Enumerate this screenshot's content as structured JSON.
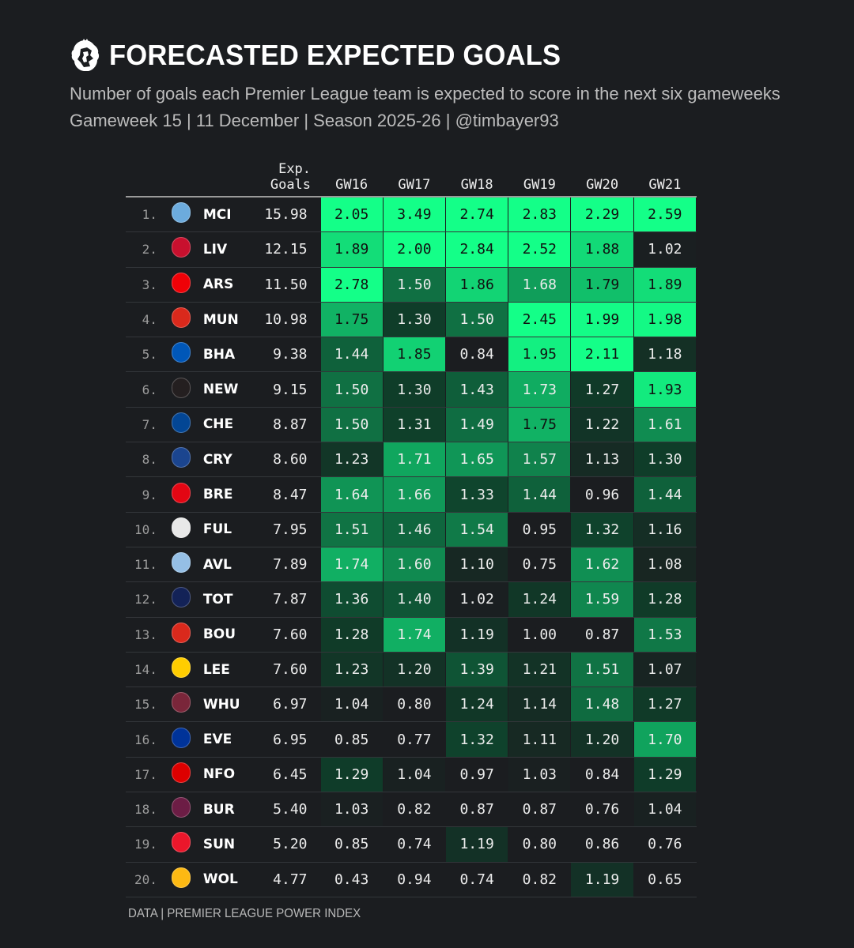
{
  "header": {
    "title": "FORECASTED EXPECTED GOALS",
    "subtitle": "Number of goals each Premier League team is expected to score in the next six gameweeks",
    "meta": "Gameweek 15 | 11 December | Season 2025-26 | @timbayer93"
  },
  "colors": {
    "background": "#1b1d20",
    "scale": [
      "#1b1d20",
      "#0f3d29",
      "#10a35d",
      "#14ff88"
    ]
  },
  "chart_data": {
    "type": "table",
    "title": "FORECASTED EXPECTED GOALS",
    "columns": {
      "exp_goals": "Exp. Goals",
      "gameweeks": [
        "GW16",
        "GW17",
        "GW18",
        "GW19",
        "GW20",
        "GW21"
      ]
    },
    "rows": [
      {
        "rank": "1.",
        "team": "MCI",
        "crest_color": "#6cabdd",
        "total": "15.98",
        "values": [
          2.05,
          3.49,
          2.74,
          2.83,
          2.29,
          2.59
        ]
      },
      {
        "rank": "2.",
        "team": "LIV",
        "crest_color": "#c8102e",
        "total": "12.15",
        "values": [
          1.89,
          2.0,
          2.84,
          2.52,
          1.88,
          1.02
        ]
      },
      {
        "rank": "3.",
        "team": "ARS",
        "crest_color": "#ef0107",
        "total": "11.50",
        "values": [
          2.78,
          1.5,
          1.86,
          1.68,
          1.79,
          1.89
        ]
      },
      {
        "rank": "4.",
        "team": "MUN",
        "crest_color": "#da291c",
        "total": "10.98",
        "values": [
          1.75,
          1.3,
          1.5,
          2.45,
          1.99,
          1.98
        ]
      },
      {
        "rank": "5.",
        "team": "BHA",
        "crest_color": "#0057b8",
        "total": "9.38",
        "values": [
          1.44,
          1.85,
          0.84,
          1.95,
          2.11,
          1.18
        ]
      },
      {
        "rank": "6.",
        "team": "NEW",
        "crest_color": "#241f20",
        "total": "9.15",
        "values": [
          1.5,
          1.3,
          1.43,
          1.73,
          1.27,
          1.93
        ]
      },
      {
        "rank": "7.",
        "team": "CHE",
        "crest_color": "#034694",
        "total": "8.87",
        "values": [
          1.5,
          1.31,
          1.49,
          1.75,
          1.22,
          1.61
        ]
      },
      {
        "rank": "8.",
        "team": "CRY",
        "crest_color": "#1b458f",
        "total": "8.60",
        "values": [
          1.23,
          1.71,
          1.65,
          1.57,
          1.13,
          1.3
        ]
      },
      {
        "rank": "9.",
        "team": "BRE",
        "crest_color": "#e30613",
        "total": "8.47",
        "values": [
          1.64,
          1.66,
          1.33,
          1.44,
          0.96,
          1.44
        ]
      },
      {
        "rank": "10.",
        "team": "FUL",
        "crest_color": "#e8e8e8",
        "total": "7.95",
        "values": [
          1.51,
          1.46,
          1.54,
          0.95,
          1.32,
          1.16
        ]
      },
      {
        "rank": "11.",
        "team": "AVL",
        "crest_color": "#95bfe5",
        "total": "7.89",
        "values": [
          1.74,
          1.6,
          1.1,
          0.75,
          1.62,
          1.08
        ]
      },
      {
        "rank": "12.",
        "team": "TOT",
        "crest_color": "#132257",
        "total": "7.87",
        "values": [
          1.36,
          1.4,
          1.02,
          1.24,
          1.59,
          1.28
        ]
      },
      {
        "rank": "13.",
        "team": "BOU",
        "crest_color": "#da291c",
        "total": "7.60",
        "values": [
          1.28,
          1.74,
          1.19,
          1.0,
          0.87,
          1.53
        ]
      },
      {
        "rank": "14.",
        "team": "LEE",
        "crest_color": "#ffcd00",
        "total": "7.60",
        "values": [
          1.23,
          1.2,
          1.39,
          1.21,
          1.51,
          1.07
        ]
      },
      {
        "rank": "15.",
        "team": "WHU",
        "crest_color": "#7a263a",
        "total": "6.97",
        "values": [
          1.04,
          0.8,
          1.24,
          1.14,
          1.48,
          1.27
        ]
      },
      {
        "rank": "16.",
        "team": "EVE",
        "crest_color": "#003399",
        "total": "6.95",
        "values": [
          0.85,
          0.77,
          1.32,
          1.11,
          1.2,
          1.7
        ]
      },
      {
        "rank": "17.",
        "team": "NFO",
        "crest_color": "#dd0000",
        "total": "6.45",
        "values": [
          1.29,
          1.04,
          0.97,
          1.03,
          0.84,
          1.29
        ]
      },
      {
        "rank": "18.",
        "team": "BUR",
        "crest_color": "#6c1d45",
        "total": "5.40",
        "values": [
          1.03,
          0.82,
          0.87,
          0.87,
          0.76,
          1.04
        ]
      },
      {
        "rank": "19.",
        "team": "SUN",
        "crest_color": "#eb172b",
        "total": "5.20",
        "values": [
          0.85,
          0.74,
          1.19,
          0.8,
          0.86,
          0.76
        ]
      },
      {
        "rank": "20.",
        "team": "WOL",
        "crest_color": "#fdb913",
        "total": "4.77",
        "values": [
          0.43,
          0.94,
          0.74,
          0.82,
          1.19,
          0.65
        ]
      }
    ]
  },
  "footer": {
    "source": "DATA | PREMIER LEAGUE POWER INDEX"
  }
}
